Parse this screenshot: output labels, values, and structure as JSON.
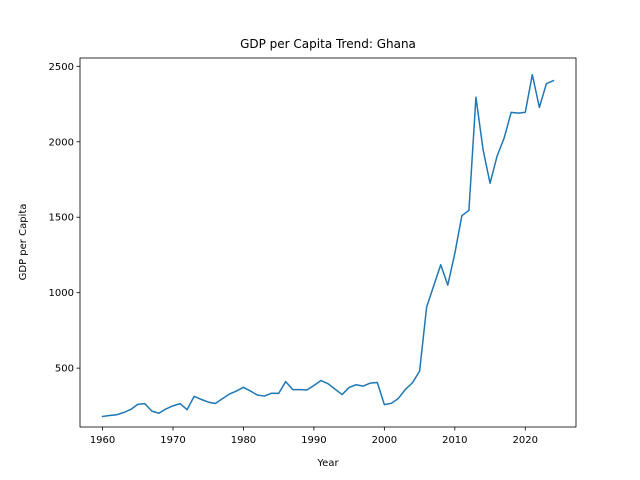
{
  "chart_data": {
    "type": "line",
    "title": "GDP per Capita Trend: Ghana",
    "xlabel": "Year",
    "ylabel": "GDP per Capita",
    "xlim": [
      1956.8,
      2027.2
    ],
    "ylim": [
      110,
      2555
    ],
    "xticks": [
      1960,
      1970,
      1980,
      1990,
      2000,
      2010,
      2020
    ],
    "yticks": [
      500,
      1000,
      1500,
      2000,
      2500
    ],
    "grid": false,
    "legend": "none",
    "series": [
      {
        "color": "#1f77b4",
        "x": [
          1960,
          1961,
          1962,
          1963,
          1964,
          1965,
          1966,
          1967,
          1968,
          1969,
          1970,
          1971,
          1972,
          1973,
          1974,
          1975,
          1976,
          1977,
          1978,
          1979,
          1980,
          1981,
          1982,
          1983,
          1984,
          1985,
          1986,
          1987,
          1988,
          1989,
          1990,
          1991,
          1992,
          1993,
          1994,
          1995,
          1996,
          1997,
          1998,
          1999,
          2000,
          2001,
          2002,
          2003,
          2004,
          2005,
          2006,
          2007,
          2008,
          2009,
          2010,
          2011,
          2012,
          2013,
          2014,
          2015,
          2016,
          2017,
          2018,
          2019,
          2020,
          2021,
          2022,
          2023,
          2024
        ],
        "values": [
          180,
          186,
          191,
          206,
          226,
          260,
          265,
          215,
          201,
          230,
          250,
          265,
          225,
          313,
          293,
          275,
          266,
          297,
          328,
          348,
          373,
          348,
          321,
          315,
          334,
          333,
          411,
          358,
          358,
          355,
          385,
          418,
          397,
          361,
          325,
          372,
          390,
          381,
          401,
          405,
          258,
          267,
          300,
          360,
          404,
          480,
          905,
          1045,
          1185,
          1050,
          1260,
          1510,
          1545,
          2295,
          1950,
          1725,
          1905,
          2025,
          2195,
          2190,
          2195,
          2445,
          2228,
          2385,
          2405
        ]
      }
    ]
  }
}
